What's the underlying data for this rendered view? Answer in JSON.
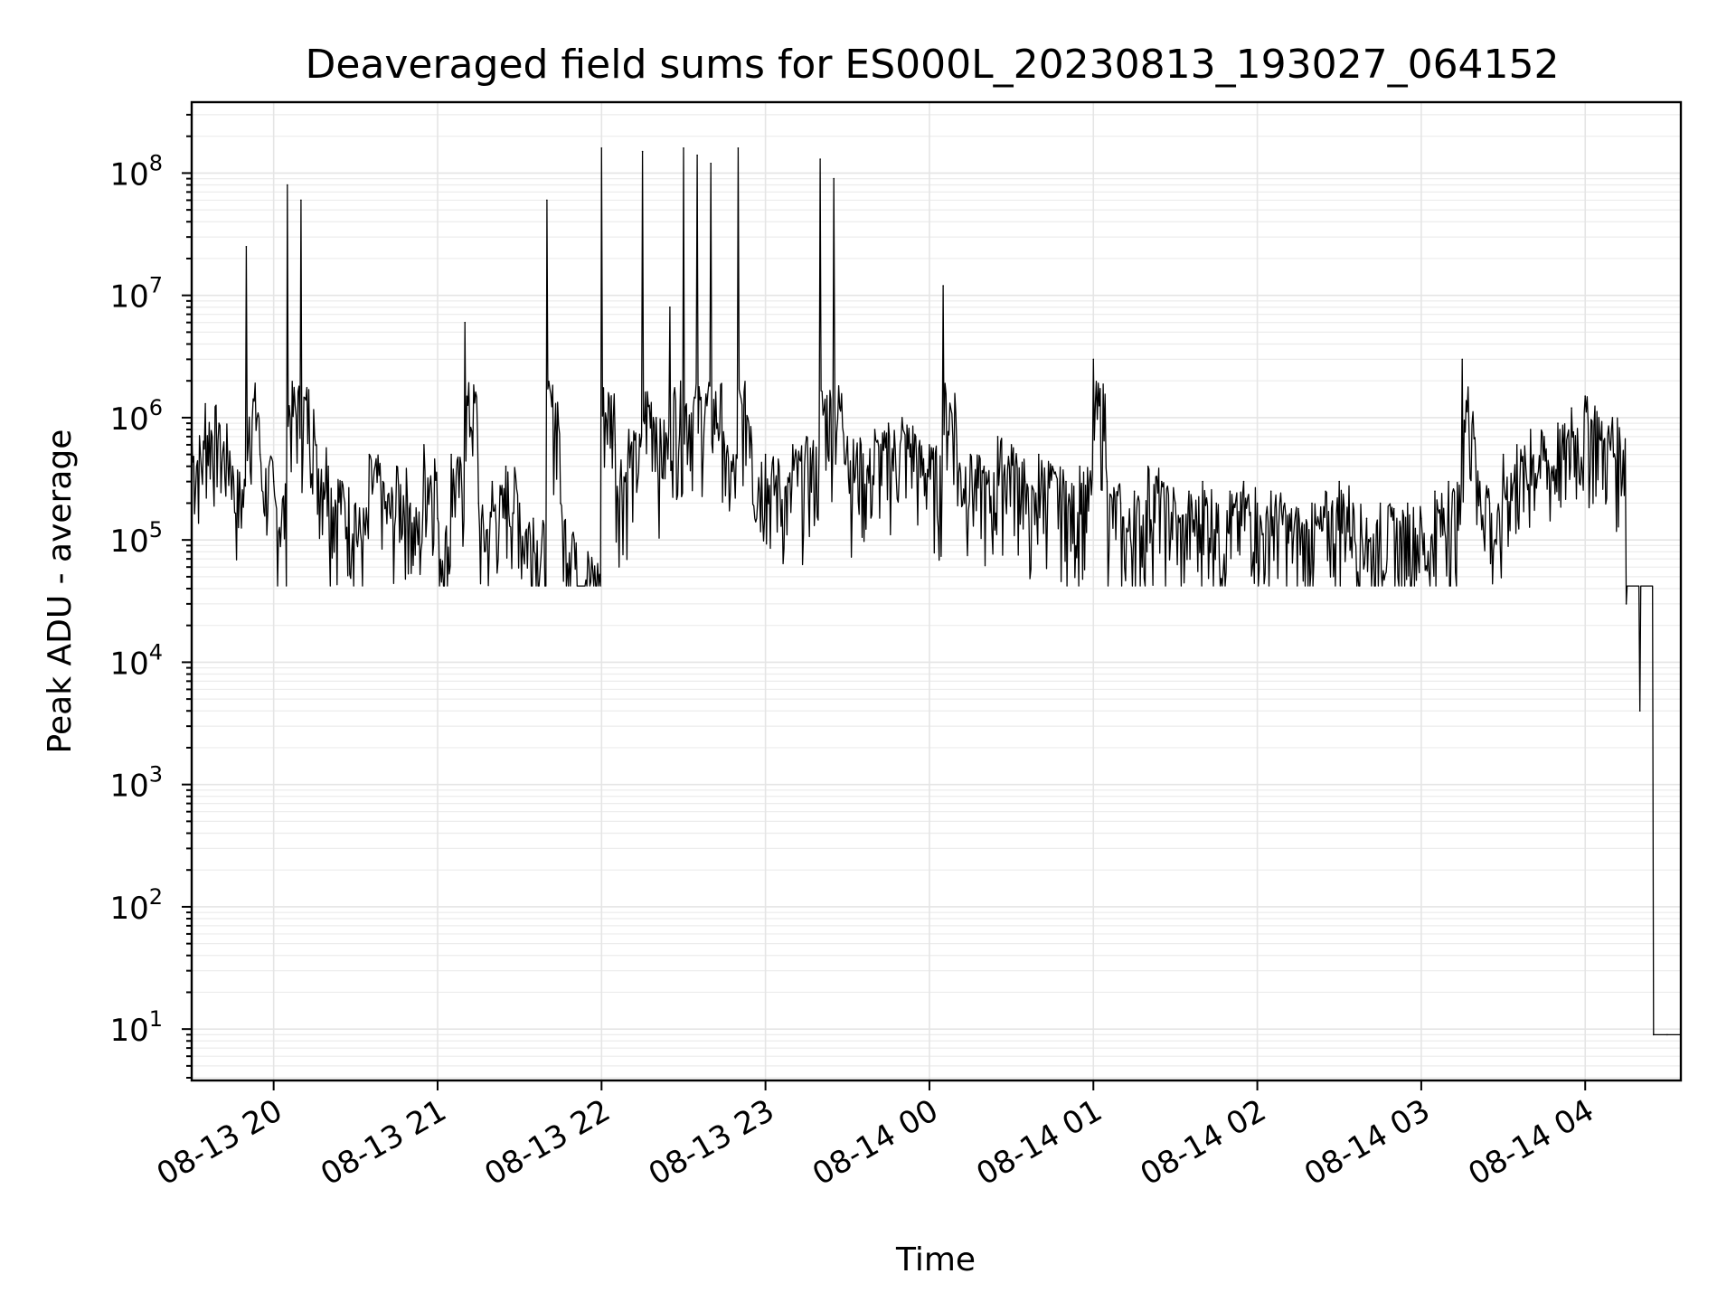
{
  "chart_data": {
    "type": "line",
    "title": "Deaveraged field sums for ES000L_20230813_193027_064152",
    "xlabel": "Time",
    "ylabel": "Peak ADU - average",
    "yscale": "log",
    "ylim": [
      3.8,
      380000000
    ],
    "xlim": [
      "2023-08-13 19:30",
      "2023-08-14 04:35"
    ],
    "grid": true,
    "line_color": "#000000",
    "x_ticks": [
      "08-13 20",
      "08-13 21",
      "08-13 22",
      "08-13 23",
      "08-14 00",
      "08-14 01",
      "08-14 02",
      "08-14 03",
      "08-14 04"
    ],
    "y_ticks": [
      {
        "base": "10",
        "exp": "1",
        "value": 10
      },
      {
        "base": "10",
        "exp": "2",
        "value": 100
      },
      {
        "base": "10",
        "exp": "3",
        "value": 1000
      },
      {
        "base": "10",
        "exp": "4",
        "value": 10000
      },
      {
        "base": "10",
        "exp": "5",
        "value": 100000
      },
      {
        "base": "10",
        "exp": "6",
        "value": 1000000
      },
      {
        "base": "10",
        "exp": "7",
        "value": 10000000
      },
      {
        "base": "10",
        "exp": "8",
        "value": 100000000
      }
    ],
    "series": [
      {
        "x": [
          "2023-08-13 19:30",
          "2023-08-13 19:35",
          "2023-08-13 19:40",
          "2023-08-13 19:45",
          "2023-08-13 19:50",
          "2023-08-13 19:55",
          "2023-08-13 20:00",
          "2023-08-13 20:05",
          "2023-08-13 20:10",
          "2023-08-13 20:15",
          "2023-08-13 20:20",
          "2023-08-13 20:25",
          "2023-08-13 20:30",
          "2023-08-13 20:35",
          "2023-08-13 20:40",
          "2023-08-13 20:45",
          "2023-08-13 20:50",
          "2023-08-13 20:55",
          "2023-08-13 21:00",
          "2023-08-13 21:05",
          "2023-08-13 21:10",
          "2023-08-13 21:15",
          "2023-08-13 21:20",
          "2023-08-13 21:25",
          "2023-08-13 21:30",
          "2023-08-13 21:35",
          "2023-08-13 21:40",
          "2023-08-13 21:45",
          "2023-08-13 21:50",
          "2023-08-13 21:55",
          "2023-08-13 22:00",
          "2023-08-13 22:05",
          "2023-08-13 22:10",
          "2023-08-13 22:15",
          "2023-08-13 22:20",
          "2023-08-13 22:25",
          "2023-08-13 22:30",
          "2023-08-13 22:35",
          "2023-08-13 22:40",
          "2023-08-13 22:45",
          "2023-08-13 22:50",
          "2023-08-13 22:55",
          "2023-08-13 23:00",
          "2023-08-13 23:05",
          "2023-08-13 23:10",
          "2023-08-13 23:15",
          "2023-08-13 23:20",
          "2023-08-13 23:25",
          "2023-08-13 23:30",
          "2023-08-13 23:35",
          "2023-08-13 23:40",
          "2023-08-13 23:45",
          "2023-08-13 23:50",
          "2023-08-13 23:55",
          "2023-08-14 00:00",
          "2023-08-14 00:05",
          "2023-08-14 00:10",
          "2023-08-14 00:15",
          "2023-08-14 00:20",
          "2023-08-14 00:25",
          "2023-08-14 00:30",
          "2023-08-14 00:35",
          "2023-08-14 00:40",
          "2023-08-14 00:45",
          "2023-08-14 00:50",
          "2023-08-14 00:55",
          "2023-08-14 01:00",
          "2023-08-14 01:05",
          "2023-08-14 01:10",
          "2023-08-14 01:15",
          "2023-08-14 01:20",
          "2023-08-14 01:25",
          "2023-08-14 01:30",
          "2023-08-14 01:35",
          "2023-08-14 01:40",
          "2023-08-14 01:45",
          "2023-08-14 01:50",
          "2023-08-14 01:55",
          "2023-08-14 02:00",
          "2023-08-14 02:05",
          "2023-08-14 02:10",
          "2023-08-14 02:15",
          "2023-08-14 02:20",
          "2023-08-14 02:25",
          "2023-08-14 02:30",
          "2023-08-14 02:35",
          "2023-08-14 02:40",
          "2023-08-14 02:45",
          "2023-08-14 02:50",
          "2023-08-14 02:55",
          "2023-08-14 03:00",
          "2023-08-14 03:05",
          "2023-08-14 03:10",
          "2023-08-14 03:15",
          "2023-08-14 03:20",
          "2023-08-14 03:25",
          "2023-08-14 03:30",
          "2023-08-14 03:35",
          "2023-08-14 03:40",
          "2023-08-14 03:45",
          "2023-08-14 03:50",
          "2023-08-14 03:55",
          "2023-08-14 04:00",
          "2023-08-14 04:05",
          "2023-08-14 04:10",
          "2023-08-14 04:15",
          "2023-08-14 04:20",
          "2023-08-14 04:25",
          "2023-08-14 04:30",
          "2023-08-14 04:35"
        ],
        "y": [
          800000,
          1300000,
          900000,
          400000,
          25000000,
          500000,
          300000,
          80000000,
          60000000,
          700000,
          400000,
          300000,
          200000,
          500000,
          300000,
          400000,
          200000,
          600000,
          150000,
          500000,
          6000000,
          200000,
          300000,
          400000,
          200000,
          150000,
          60000000,
          200000,
          100000,
          80000,
          160000000,
          600000,
          800000,
          150000000,
          1000000,
          8000000,
          160000000,
          140000000,
          120000000,
          600000,
          160000000,
          600000,
          500000,
          400000,
          600000,
          700000,
          130000000,
          90000000,
          700000,
          600000,
          800000,
          900000,
          1000000,
          700000,
          600000,
          12000000,
          600000,
          500000,
          400000,
          700000,
          600000,
          300000,
          500000,
          400000,
          300000,
          400000,
          3000000,
          300000,
          200000,
          250000,
          400000,
          300000,
          200000,
          250000,
          300000,
          200000,
          250000,
          300000,
          200000,
          250000,
          200000,
          180000,
          200000,
          250000,
          300000,
          200000,
          150000,
          200000,
          180000,
          200000,
          150000,
          250000,
          300000,
          3000000,
          400000,
          200000,
          500000,
          600000,
          800000,
          700000,
          900000,
          1200000,
          1500000,
          1000000,
          1000000,
          30000,
          4000,
          9,
          9,
          9
        ]
      }
    ]
  }
}
